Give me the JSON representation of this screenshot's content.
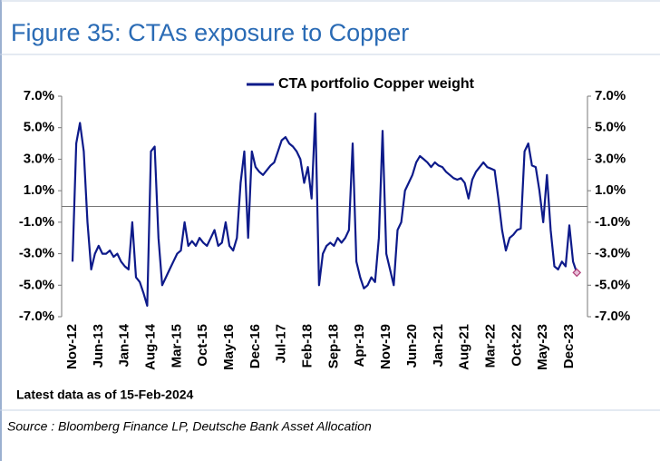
{
  "title": "Figure 35: CTAs exposure to Copper",
  "source": "Source : Bloomberg Finance LP, Deutsche Bank Asset Allocation",
  "chart_data": {
    "type": "line",
    "annotation": "Latest data as of 15-Feb-2024",
    "categories": [
      "Nov-12",
      null,
      null,
      null,
      null,
      null,
      null,
      "Jun-13",
      null,
      null,
      null,
      null,
      null,
      null,
      "Jan-14",
      null,
      null,
      null,
      null,
      null,
      null,
      "Aug-14",
      null,
      null,
      null,
      null,
      null,
      null,
      "Mar-15",
      null,
      null,
      null,
      null,
      null,
      null,
      "Oct-15",
      null,
      null,
      null,
      null,
      null,
      null,
      "May-16",
      null,
      null,
      null,
      null,
      null,
      null,
      "Dec-16",
      null,
      null,
      null,
      null,
      null,
      null,
      "Jul-17",
      null,
      null,
      null,
      null,
      null,
      null,
      "Feb-18",
      null,
      null,
      null,
      null,
      null,
      null,
      "Sep-18",
      null,
      null,
      null,
      null,
      null,
      null,
      "Apr-19",
      null,
      null,
      null,
      null,
      null,
      null,
      "Nov-19",
      null,
      null,
      null,
      null,
      null,
      null,
      "Jun-20",
      null,
      null,
      null,
      null,
      null,
      null,
      "Jan-21",
      null,
      null,
      null,
      null,
      null,
      null,
      "Aug-21",
      null,
      null,
      null,
      null,
      null,
      null,
      "Mar-22",
      null,
      null,
      null,
      null,
      null,
      null,
      "Oct-22",
      null,
      null,
      null,
      null,
      null,
      null,
      "May-23",
      null,
      null,
      null,
      null,
      null,
      null,
      "Dec-23",
      null,
      null
    ],
    "series": [
      {
        "name": "CTA portfolio Copper weight",
        "color": "#0d1a8a",
        "marker_color": "#b0407a",
        "values": [
          -3.5,
          4,
          5.3,
          3.5,
          -1,
          -4,
          -3,
          -2.5,
          -3,
          -3,
          -2.8,
          -3.2,
          -3,
          -3.5,
          -3.8,
          -4,
          -1,
          -4.5,
          -4.8,
          -5.5,
          -6.3,
          3.5,
          3.8,
          -2,
          -5,
          -4.5,
          -4,
          -3.5,
          -3,
          -2.8,
          -1,
          -2.5,
          -2.2,
          -2.5,
          -2,
          -2.3,
          -2.5,
          -2,
          -1.5,
          -2.5,
          -2.3,
          -1,
          -2.5,
          -2.8,
          -2,
          1.5,
          3.5,
          -2,
          3.5,
          2.5,
          2.2,
          2,
          2.3,
          2.6,
          2.8,
          3.5,
          4.2,
          4.4,
          4,
          3.8,
          3.5,
          3,
          1.5,
          2.5,
          0.5,
          5.9,
          -5,
          -3,
          -2.5,
          -2.3,
          -2.5,
          -2,
          -2.3,
          -2,
          -1.5,
          4,
          -3.5,
          -4.5,
          -5.2,
          -5,
          -4.5,
          -4.8,
          -2,
          4.8,
          -3,
          -4,
          -5,
          -1.5,
          -1,
          1,
          1.5,
          2,
          2.8,
          3.2,
          3,
          2.8,
          2.5,
          2.8,
          2.6,
          2.5,
          2.2,
          2,
          1.8,
          1.7,
          1.8,
          1.5,
          0.5,
          1.7,
          2.2,
          2.5,
          2.8,
          2.5,
          2.4,
          2.3,
          0.5,
          -1.5,
          -2.8,
          -2,
          -1.8,
          -1.5,
          -1.4,
          3.5,
          4,
          2.6,
          2.5,
          1,
          -1,
          2,
          -1.5,
          -3.8,
          -4,
          -3.5,
          -3.8,
          -1.2,
          -3.5,
          -4.2
        ]
      }
    ],
    "ylim": [
      -7,
      7
    ],
    "yticks": [
      {
        "value": -7,
        "label": "-7.0%"
      },
      {
        "value": -5,
        "label": "-5.0%"
      },
      {
        "value": -3,
        "label": "-3.0%"
      },
      {
        "value": -1,
        "label": "-1.0%"
      },
      {
        "value": 1,
        "label": "1.0%"
      },
      {
        "value": 3,
        "label": "3.0%"
      },
      {
        "value": 5,
        "label": "5.0%"
      },
      {
        "value": 7,
        "label": "7.0%"
      }
    ],
    "y2lim": [
      -7,
      7
    ],
    "y2ticks": [
      {
        "value": -7,
        "label": "-7.0%"
      },
      {
        "value": -5,
        "label": "-5.0%"
      },
      {
        "value": -3,
        "label": "-3.0%"
      },
      {
        "value": -1,
        "label": "-1.0%"
      },
      {
        "value": 1,
        "label": "1.0%"
      },
      {
        "value": 3,
        "label": "3.0%"
      },
      {
        "value": 5,
        "label": "5.0%"
      },
      {
        "value": 7,
        "label": "7.0%"
      }
    ],
    "legend": "top"
  }
}
